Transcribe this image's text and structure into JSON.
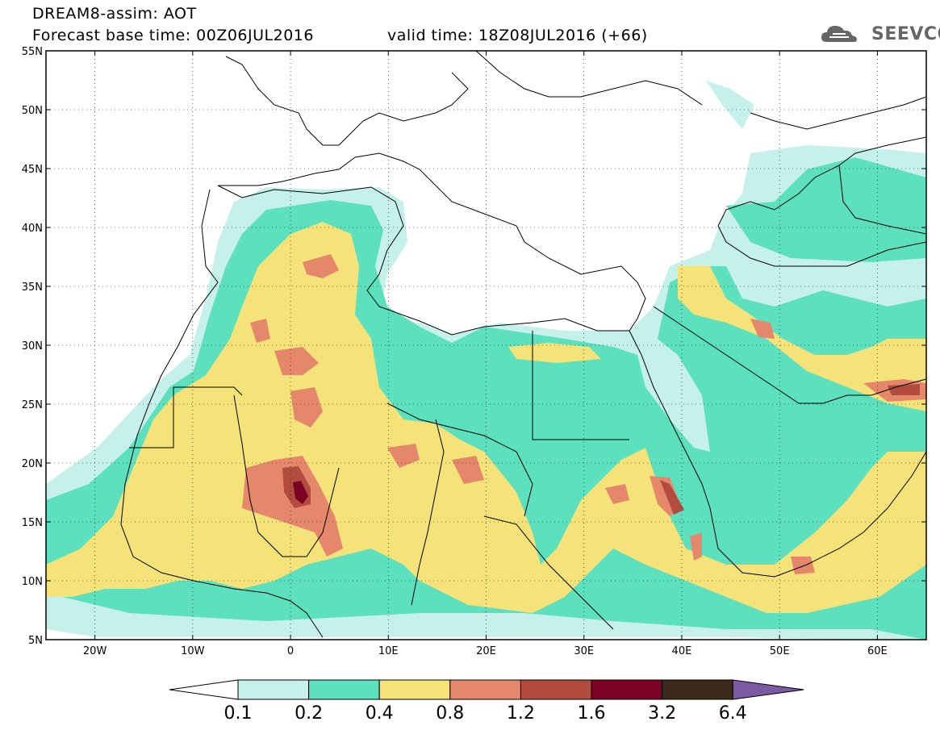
{
  "header": {
    "title_line1": "DREAM8-assim: AOT",
    "title_line2": "Forecast base time: 00Z06JUL2016",
    "valid_time": "valid time: 18Z08JUL2016 (+66)",
    "logo_text": "SEEVCCC"
  },
  "map": {
    "lat_labels": [
      "55N",
      "50N",
      "45N",
      "40N",
      "35N",
      "30N",
      "25N",
      "20N",
      "15N",
      "10N",
      "5N"
    ],
    "lon_labels": [
      "20W",
      "10W",
      "0",
      "10E",
      "20E",
      "30E",
      "40E",
      "50E",
      "60E"
    ],
    "lat_range": [
      5,
      55
    ],
    "lon_range": [
      -25,
      65
    ]
  },
  "colorbar": {
    "labels": [
      "0.1",
      "0.2",
      "0.4",
      "0.8",
      "1.2",
      "1.6",
      "3.2",
      "6.4"
    ],
    "colors": [
      "#ffffff",
      "#c6f1eb",
      "#5ce0bd",
      "#f5e278",
      "#e5876a",
      "#b14c3e",
      "#7d0026",
      "#3d2a1a",
      "#7b59a3"
    ]
  }
}
